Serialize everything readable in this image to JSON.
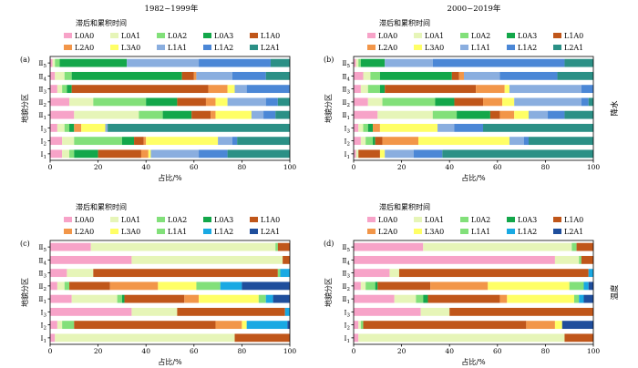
{
  "figure": {
    "column_titles": [
      "1982~1999年",
      "2000~2019年"
    ],
    "row_labels": [
      "降水",
      "温度"
    ]
  },
  "legend": {
    "title": "滞后和累积时间",
    "items": [
      {
        "label": "L0A0",
        "color": "#f7a3c8"
      },
      {
        "label": "L0A1",
        "color": "#e6f5b8"
      },
      {
        "label": "L0A2",
        "color": "#82e07a"
      },
      {
        "label": "L0A3",
        "color": "#13a74a"
      },
      {
        "label": "L1A0",
        "color": "#c0561a"
      },
      {
        "label": "L2A0",
        "color": "#f29649"
      },
      {
        "label": "L3A0",
        "color": "#ffff66"
      },
      {
        "label": "L1A1",
        "color": "#8aaedf"
      },
      {
        "label": "L1A2",
        "color": "#4b87d6"
      },
      {
        "label": "L2A1",
        "color": "#2b9086"
      }
    ],
    "items_temp": [
      {
        "label": "L0A0",
        "color": "#f7a3c8"
      },
      {
        "label": "L0A1",
        "color": "#e6f5b8"
      },
      {
        "label": "L0A2",
        "color": "#82e07a"
      },
      {
        "label": "L0A3",
        "color": "#13a74a"
      },
      {
        "label": "L1A0",
        "color": "#c0561a"
      },
      {
        "label": "L2A0",
        "color": "#f29649"
      },
      {
        "label": "L3A0",
        "color": "#ffff66"
      },
      {
        "label": "L1A1",
        "color": "#82e07a"
      },
      {
        "label": "L1A2",
        "color": "#19a9e3"
      },
      {
        "label": "L2A1",
        "color": "#1f4e9c"
      }
    ]
  },
  "chart_data": [
    {
      "type": "bar",
      "panel": "(a)",
      "title": "1982~1999年",
      "xlabel": "占比/%",
      "ylabel": "地貌分区",
      "xlim": [
        0,
        100
      ],
      "xticks": [
        "0",
        "20",
        "40",
        "60",
        "80",
        "100"
      ],
      "categories": [
        "Ⅱ5",
        "Ⅱ4",
        "Ⅱ3",
        "Ⅱ2",
        "Ⅱ1",
        "Ⅰ3",
        "Ⅰ2",
        "Ⅰ1"
      ],
      "category_main": [
        "Ⅱ",
        "Ⅱ",
        "Ⅱ",
        "Ⅱ",
        "Ⅱ",
        "Ⅰ",
        "Ⅰ",
        "Ⅰ"
      ],
      "category_sub": [
        "5",
        "4",
        "3",
        "2",
        "1",
        "3",
        "2",
        "1"
      ],
      "series_names": [
        "L0A0",
        "L0A1",
        "L0A2",
        "L0A3",
        "L1A0",
        "L2A0",
        "L3A0",
        "L1A1",
        "L1A2",
        "L2A1"
      ],
      "values": [
        [
          1,
          1,
          2,
          28,
          0,
          0,
          0,
          30,
          30,
          8
        ],
        [
          2,
          4,
          3,
          46,
          5,
          1,
          0,
          15,
          14,
          10
        ],
        [
          3,
          2,
          2,
          2,
          57,
          8,
          3,
          5,
          18,
          0
        ],
        [
          8,
          10,
          22,
          13,
          12,
          4,
          5,
          16,
          5,
          5
        ],
        [
          10,
          27,
          10,
          12,
          8,
          2,
          15,
          5,
          5,
          6
        ],
        [
          3,
          3,
          2,
          2,
          0,
          3,
          10,
          1,
          0,
          76
        ],
        [
          5,
          5,
          20,
          5,
          4,
          1,
          30,
          6,
          2,
          22
        ],
        [
          5,
          3,
          2,
          10,
          18,
          3,
          1,
          20,
          12,
          26
        ]
      ]
    },
    {
      "type": "bar",
      "panel": "(b)",
      "title": "2000~2019年",
      "xlabel": "占比/%",
      "ylabel": "地貌分区",
      "side_label": "降水",
      "xlim": [
        0,
        100
      ],
      "xticks": [
        "0",
        "20",
        "40",
        "60",
        "80",
        "100"
      ],
      "categories": [
        "Ⅱ5",
        "Ⅱ4",
        "Ⅱ3",
        "Ⅱ2",
        "Ⅱ1",
        "Ⅰ3",
        "Ⅰ2",
        "Ⅰ1"
      ],
      "category_main": [
        "Ⅱ",
        "Ⅱ",
        "Ⅱ",
        "Ⅱ",
        "Ⅱ",
        "Ⅰ",
        "Ⅰ",
        "Ⅰ"
      ],
      "category_sub": [
        "5",
        "4",
        "3",
        "2",
        "1",
        "3",
        "2",
        "1"
      ],
      "series_names": [
        "L0A0",
        "L0A1",
        "L0A2",
        "L0A3",
        "L1A0",
        "L2A0",
        "L3A0",
        "L1A1",
        "L1A2",
        "L2A1"
      ],
      "values": [
        [
          1,
          1,
          1,
          10,
          0,
          0,
          0,
          20,
          55,
          12
        ],
        [
          4,
          3,
          4,
          30,
          3,
          2,
          0,
          15,
          24,
          15
        ],
        [
          3,
          3,
          5,
          2,
          38,
          12,
          2,
          30,
          5,
          0
        ],
        [
          6,
          6,
          22,
          8,
          12,
          8,
          5,
          28,
          3,
          2
        ],
        [
          10,
          23,
          10,
          14,
          4,
          6,
          6,
          8,
          7,
          12
        ],
        [
          2,
          2,
          2,
          2,
          0,
          3,
          24,
          7,
          12,
          46
        ],
        [
          3,
          2,
          3,
          1,
          3,
          15,
          38,
          6,
          2,
          27
        ],
        [
          1,
          1,
          0,
          0,
          9,
          0,
          2,
          12,
          12,
          63
        ]
      ]
    },
    {
      "type": "bar",
      "panel": "(c)",
      "xlabel": "占比/%",
      "ylabel": "地貌分区",
      "xlim": [
        0,
        100
      ],
      "xticks": [
        "0",
        "20",
        "40",
        "60",
        "80",
        "100"
      ],
      "categories": [
        "Ⅱ5",
        "Ⅱ4",
        "Ⅱ3",
        "Ⅱ2",
        "Ⅱ1",
        "Ⅰ3",
        "Ⅰ2",
        "Ⅰ1"
      ],
      "category_main": [
        "Ⅱ",
        "Ⅱ",
        "Ⅱ",
        "Ⅱ",
        "Ⅱ",
        "Ⅰ",
        "Ⅰ",
        "Ⅰ"
      ],
      "category_sub": [
        "5",
        "4",
        "3",
        "2",
        "1",
        "3",
        "2",
        "1"
      ],
      "series_names": [
        "L0A0",
        "L0A1",
        "L0A2",
        "L0A3",
        "L1A0",
        "L2A0",
        "L3A0",
        "L1A1",
        "L1A2",
        "L2A1"
      ],
      "values": [
        [
          17,
          77,
          1,
          0,
          5,
          0,
          0,
          0,
          0,
          0
        ],
        [
          34,
          63,
          0,
          0,
          3,
          0,
          0,
          0,
          0,
          0
        ],
        [
          7,
          11,
          0,
          0,
          77,
          0,
          0,
          1,
          4,
          0
        ],
        [
          3,
          3,
          2,
          0,
          17,
          20,
          16,
          10,
          9,
          20
        ],
        [
          9,
          19,
          2,
          1,
          25,
          6,
          25,
          3,
          3,
          7
        ],
        [
          34,
          19,
          0,
          0,
          45,
          0,
          0,
          0,
          2,
          0
        ],
        [
          3,
          2,
          5,
          0,
          59,
          11,
          2,
          0,
          17,
          1
        ],
        [
          2,
          75,
          0,
          0,
          23,
          0,
          0,
          0,
          0,
          0
        ]
      ]
    },
    {
      "type": "bar",
      "panel": "(d)",
      "xlabel": "占比/%",
      "ylabel": "地貌分区",
      "side_label": "温度",
      "xlim": [
        0,
        100
      ],
      "xticks": [
        "0",
        "20",
        "40",
        "60",
        "80",
        "100"
      ],
      "categories": [
        "Ⅱ5",
        "Ⅱ4",
        "Ⅱ3",
        "Ⅱ2",
        "Ⅱ1",
        "Ⅰ3",
        "Ⅰ2",
        "Ⅰ1"
      ],
      "category_main": [
        "Ⅱ",
        "Ⅱ",
        "Ⅱ",
        "Ⅱ",
        "Ⅱ",
        "Ⅰ",
        "Ⅰ",
        "Ⅰ"
      ],
      "category_sub": [
        "5",
        "4",
        "3",
        "2",
        "1",
        "3",
        "2",
        "1"
      ],
      "series_names": [
        "L0A0",
        "L0A1",
        "L0A2",
        "L0A3",
        "L1A0",
        "L2A0",
        "L3A0",
        "L1A1",
        "L1A2",
        "L2A1"
      ],
      "values": [
        [
          29,
          62,
          2,
          0,
          7,
          0,
          0,
          0,
          0,
          0
        ],
        [
          84,
          10,
          1,
          0,
          5,
          0,
          0,
          0,
          0,
          0
        ],
        [
          15,
          4,
          0,
          0,
          79,
          0,
          0,
          0,
          2,
          0
        ],
        [
          3,
          2,
          4,
          1,
          22,
          24,
          34,
          6,
          2,
          2
        ],
        [
          17,
          9,
          3,
          2,
          30,
          3,
          28,
          2,
          2,
          4
        ],
        [
          28,
          12,
          0,
          0,
          60,
          0,
          0,
          0,
          0,
          0
        ],
        [
          2,
          1,
          1,
          0,
          68,
          12,
          3,
          0,
          0,
          13
        ],
        [
          2,
          86,
          0,
          0,
          12,
          0,
          0,
          0,
          0,
          0
        ]
      ]
    }
  ]
}
